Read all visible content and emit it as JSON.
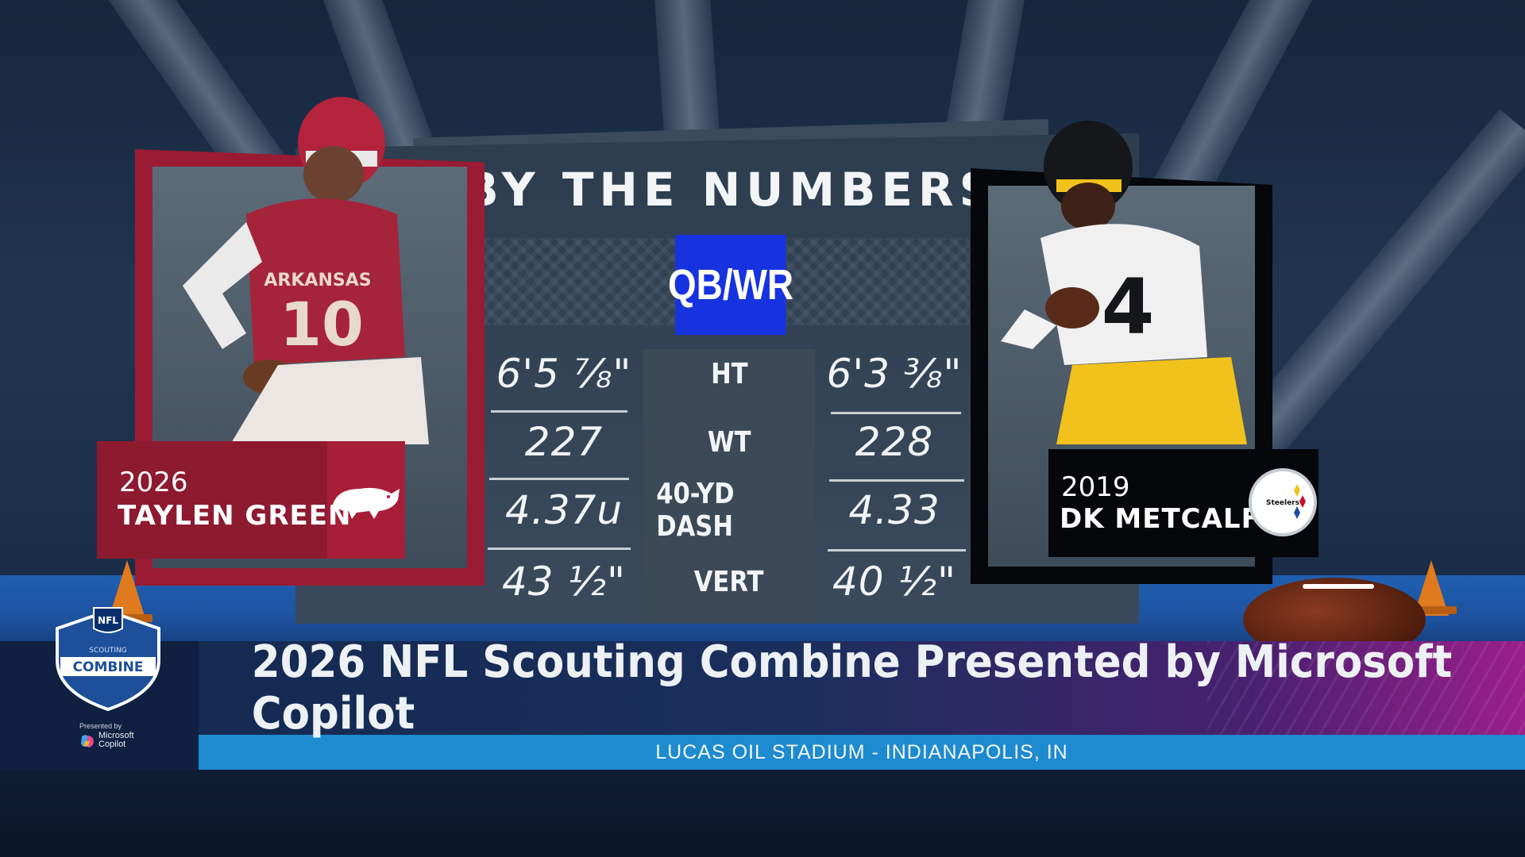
{
  "graphic": {
    "title": "BY THE NUMBERS",
    "position": "QB/WR"
  },
  "left_player": {
    "year": "2026",
    "name": "TAYLEN GREEN",
    "team_logo": "arkansas-razorback-icon",
    "jersey_text": "ARKANSAS",
    "jersey_number": "10",
    "color": "#9a1b33"
  },
  "right_player": {
    "year": "2019",
    "name": "DK METCALF",
    "team_logo": "steelers-logo-icon",
    "logo_text": "Steelers",
    "jersey_number": "4",
    "color": "#05070a"
  },
  "stats": [
    {
      "label": "HT",
      "left": "6'5 ⅞\"",
      "right": "6'3 ⅜\""
    },
    {
      "label": "WT",
      "left": "227",
      "right": "228"
    },
    {
      "label": "40-YD DASH",
      "left": "4.37u",
      "right": "4.33"
    },
    {
      "label": "VERT",
      "left": "43 ½\"",
      "right": "40 ½\""
    }
  ],
  "lower_third": {
    "headline": "2026 NFL Scouting Combine Presented by Microsoft Copilot",
    "subline": "LUCAS OIL STADIUM - INDIANAPOLIS, IN",
    "logo_nfl": "NFL",
    "logo_scouting": "SCOUTING",
    "logo_combine": "COMBINE",
    "presented_by": "Presented by",
    "sponsor_line1": "Microsoft",
    "sponsor_line2": "Copilot"
  },
  "colors": {
    "position_badge": "#1733e0",
    "lower_third_sub": "#1e8ad0"
  }
}
